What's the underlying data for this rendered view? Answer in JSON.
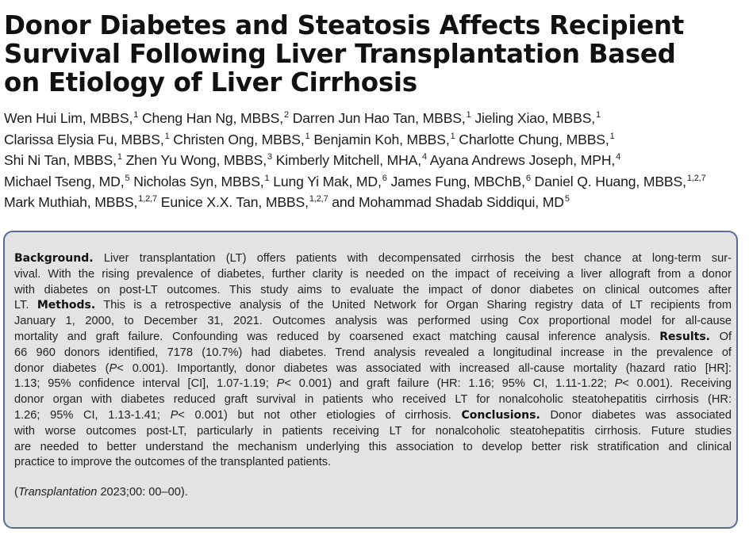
{
  "title_lines": [
    "Donor Diabetes and Steatosis Affects Recipient",
    "Survival Following Liver Transplantation Based",
    "on Etiology of Liver Cirrhosis"
  ],
  "authors": [
    {
      "name": "Wen Hui Lim, MBBS,",
      "aff": "1"
    },
    {
      "name": "Cheng Han Ng, MBBS,",
      "aff": "2"
    },
    {
      "name": "Darren Jun Hao Tan, MBBS,",
      "aff": "1"
    },
    {
      "name": "Jieling Xiao, MBBS,",
      "aff": "1"
    },
    {
      "name": "Clarissa Elysia Fu, MBBS,",
      "aff": "1"
    },
    {
      "name": "Christen Ong, MBBS,",
      "aff": "1"
    },
    {
      "name": "Benjamin Koh, MBBS,",
      "aff": "1"
    },
    {
      "name": "Charlotte Chung, MBBS,",
      "aff": "1"
    },
    {
      "name": "Shi Ni Tan, MBBS,",
      "aff": "1"
    },
    {
      "name": "Zhen Yu Wong, MBBS,",
      "aff": "3"
    },
    {
      "name": "Kimberly Mitchell, MHA,",
      "aff": "4"
    },
    {
      "name": "Ayana Andrews Joseph, MPH,",
      "aff": "4"
    },
    {
      "name": "Michael Tseng, MD,",
      "aff": "5"
    },
    {
      "name": "Nicholas Syn, MBBS,",
      "aff": "1"
    },
    {
      "name": "Lung Yi Mak, MD,",
      "aff": "6"
    },
    {
      "name": "James Fung, MBChB,",
      "aff": "6"
    },
    {
      "name": "Daniel Q. Huang, MBBS,",
      "aff": "1,2,7"
    },
    {
      "name": "Mark Muthiah, MBBS,",
      "aff": "1,2,7"
    },
    {
      "name": "Eunice X.X. Tan, MBBS,",
      "aff": "1,2,7"
    },
    {
      "name": "and Mohammad Shadab Siddiqui, MD",
      "aff": "5"
    }
  ],
  "abstract": {
    "background_heading": "Background.",
    "background_text": "Liver transplantation (LT) offers patients with decompensated cirrhosis the best chance at long-term survival. With the rising prevalence of diabetes, further clarity is needed on the impact of receiving a liver allograft from a donor with diabetes on post-LT outcomes. This study aims to evaluate the impact of donor diabetes on clinical outcomes after LT.",
    "methods_heading": "Methods.",
    "methods_text": "This is a retrospective analysis of the United Network for Organ Sharing registry data of LT recipients from January 1, 2000, to December 31, 2021. Outcomes analysis was performed using Cox proportional model for all-cause mortality and graft failure. Confounding was reduced by coarsened exact matching causal inference analysis.",
    "results_heading": "Results.",
    "results_text": "Of 66 960 donors identified, 7178 (10.7%) had diabetes. Trend analysis revealed a longitudinal increase in the prevalence of donor diabetes (P < 0.001). Importantly, donor diabetes was associated with increased all-cause mortality (hazard ratio [HR]: 1.13; 95% confidence interval [CI], 1.07-1.19; P < 0.001) and graft failure (HR: 1.16; 95% CI, 1.11-1.22; P < 0.001). Receiving donor organ with diabetes reduced graft survival in patients who received LT for nonalcoholic steatohepatitis cirrhosis (HR: 1.26; 95% CI, 1.13-1.41; P < 0.001) but not other etiologies of cirrhosis.",
    "conclusions_heading": "Conclusions.",
    "conclusions_text": "Donor diabetes was associated with worse outcomes post-LT, particularly in patients receiving LT for nonalcoholic steatohepatitis cirrhosis. Future studies are needed to better understand the mechanism underlying this association to develop better risk stratification and clinical practice to improve the outcomes of the transplanted patients.",
    "lines": [
      "Liver transplantation (LT) offers patients with decompensated cirrhosis the best chance at long-term sur-",
      "vival. With the rising prevalence of diabetes, further clarity is needed on the impact of receiving a liver allograft from a donor",
      "with diabetes on post-LT outcomes. This study aims to evaluate the impact of donor diabetes on clinical outcomes after",
      "LT.",
      "This is a retrospective analysis of the United Network for Organ Sharing registry data of LT recipients from",
      "January 1, 2000, to December 31, 2021. Outcomes analysis was performed using Cox proportional model for all-cause",
      "mortality and graft failure. Confounding was reduced by coarsened exact matching causal inference analysis.",
      "Of",
      "66 960 donors identified, 7178 (10.7%) had diabetes. Trend analysis revealed a longitudinal increase in the prevalence of",
      "donor diabetes (",
      "P",
      "< 0.001). Importantly, donor diabetes was associated with increased all-cause mortality (hazard ratio [HR]:",
      "1.13; 95% confidence interval [CI], 1.07-1.19;",
      "< 0.001) and graft failure (HR: 1.16; 95% CI, 1.11-1.22;",
      "< 0.001). Receiving",
      "donor organ with diabetes reduced graft survival in patients who received LT for nonalcoholic steatohepatitis cirrhosis (HR:",
      "1.26; 95% CI, 1.13-1.41;",
      "< 0.001) but not other etiologies of cirrhosis.",
      "Donor diabetes was associated",
      "with worse outcomes post-LT, particularly in patients receiving LT for nonalcoholic steatohepatitis cirrhosis. Future studies",
      "are needed to better understand the mechanism underlying this association to develop better risk stratification and clinical",
      "practice to improve the outcomes of the transplanted patients."
    ]
  },
  "citation": {
    "open": "(",
    "journal": "Transplantation",
    "rest": " 2023;00: 00–00)."
  },
  "colors": {
    "box_fill": "#e3e3e3",
    "box_border": "#586c95"
  }
}
